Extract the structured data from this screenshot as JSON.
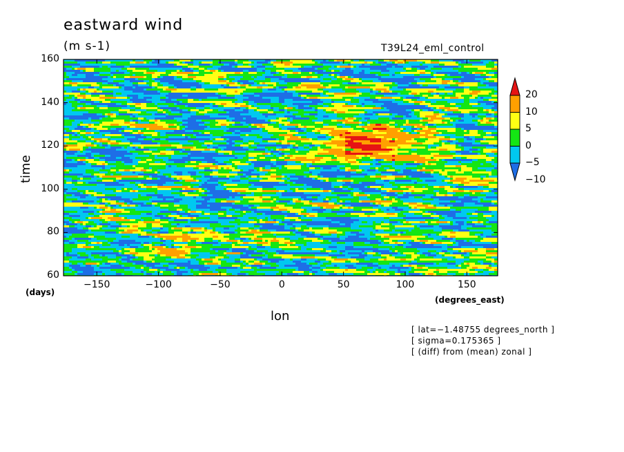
{
  "chart_data": {
    "type": "heatmap",
    "title": "eastward wind",
    "units": "(m s-1)",
    "run_label": "T39L24_eml_control",
    "xlabel": "lon",
    "ylabel": "time",
    "x_units": "(degrees_east)",
    "y_units": "(days)",
    "xlim": [
      -177,
      175
    ],
    "ylim": [
      60,
      160
    ],
    "x_ticks": [
      -150,
      -100,
      -50,
      0,
      50,
      100,
      150
    ],
    "x_tick_labels": [
      "−150",
      "−100",
      "−50",
      "0",
      "50",
      "100",
      "150"
    ],
    "y_ticks": [
      60,
      80,
      100,
      120,
      140,
      160
    ],
    "y_tick_labels": [
      "60",
      "80",
      "100",
      "120",
      "140",
      "160"
    ],
    "colorbar": {
      "levels": [
        -10,
        -5,
        0,
        5,
        10,
        20
      ],
      "level_labels": [
        "−10",
        "−5",
        "0",
        "5",
        "10",
        "20"
      ],
      "colors": [
        "#1e6ee6",
        "#00c8f0",
        "#14e614",
        "#ffff14",
        "#ffa000",
        "#e61414"
      ],
      "extend": "both"
    },
    "notes": [
      "[ lat=−1.48755 degrees_north ]",
      "[ sigma=0.175365 ]",
      "[ (diff) from (mean) zonal ]"
    ]
  }
}
